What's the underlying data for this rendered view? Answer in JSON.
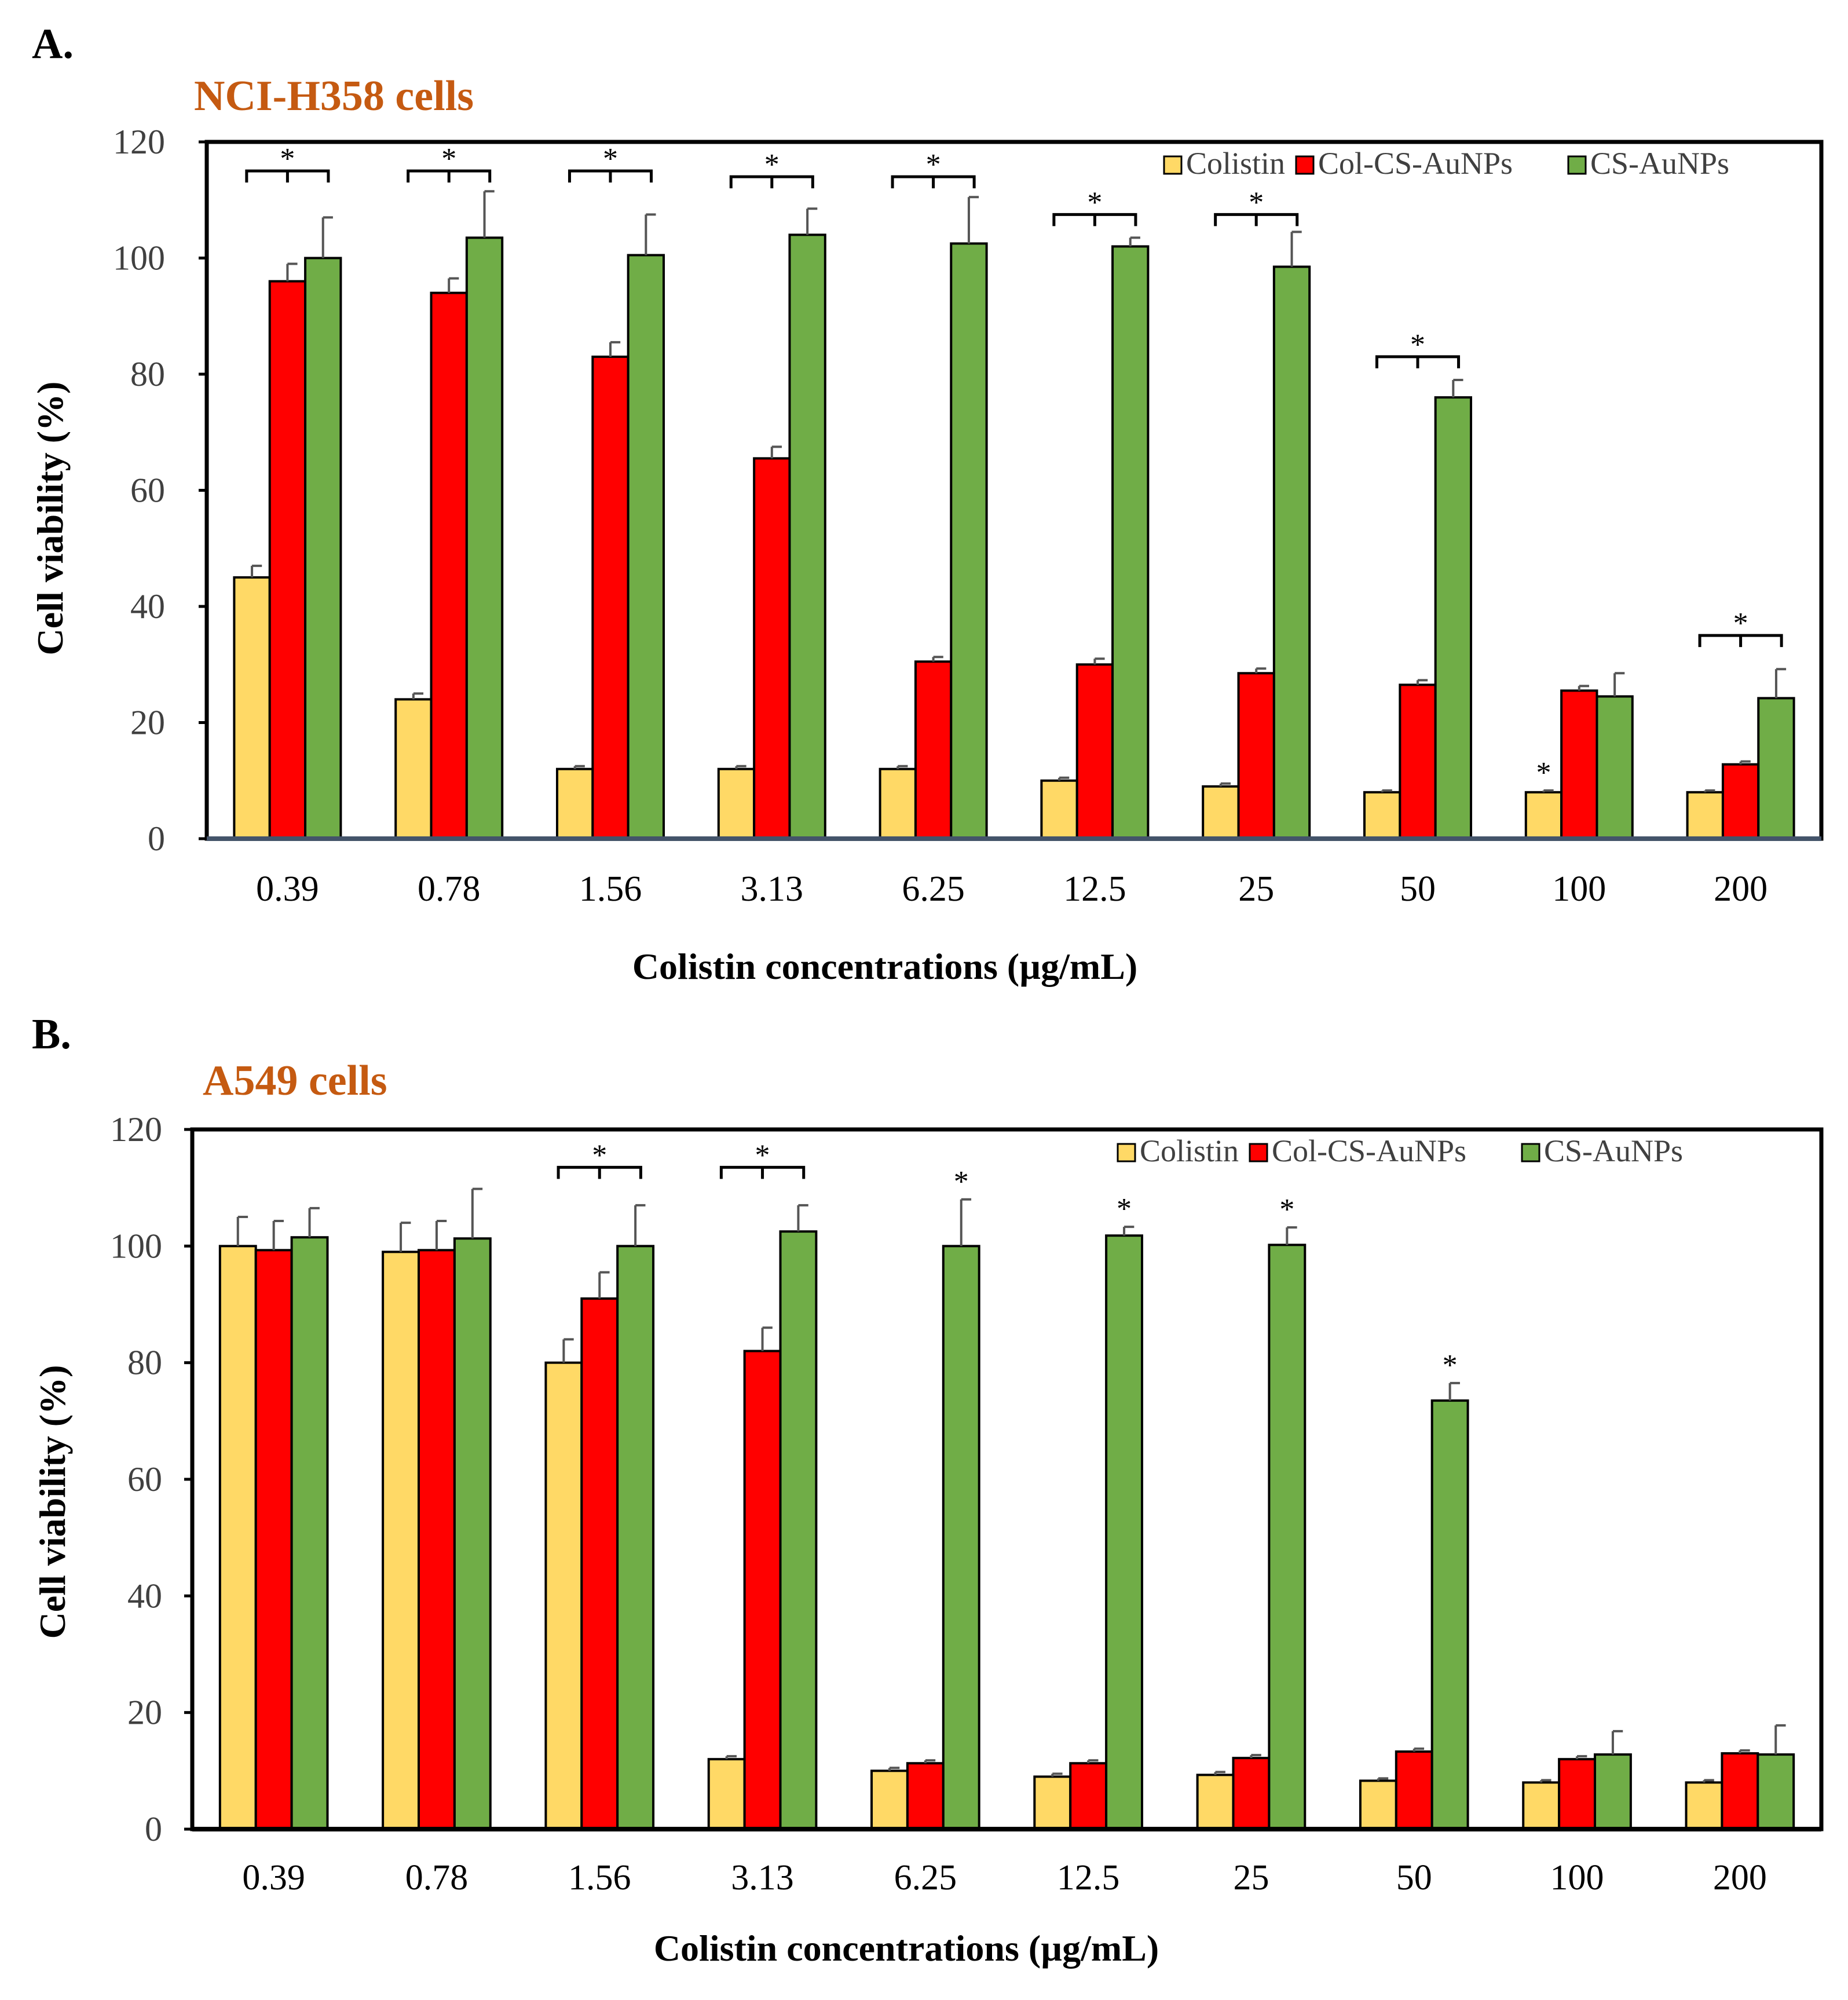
{
  "colors": {
    "Colistin": "#FFD966",
    "Col-CS-AuNPs": "#FF0000",
    "CS-AuNPs": "#70AD47",
    "title": "#C55A11",
    "barStroke": "#000000",
    "errorBar": "#555555"
  },
  "chart_data": [
    {
      "id": "A",
      "type": "bar",
      "panel_label": "A.",
      "title": "NCI-H358 cells",
      "xlabel": "Colistin concentrations (µg/mL)",
      "ylabel": "Cell viability (%)",
      "ylim": [
        0,
        120
      ],
      "yticks": [
        0,
        20,
        40,
        60,
        80,
        100,
        120
      ],
      "grid": false,
      "legend_position": "top-right",
      "categories": [
        "0.39",
        "0.78",
        "1.56",
        "3.13",
        "6.25",
        "12.5",
        "25",
        "50",
        "100",
        "200"
      ],
      "series": [
        {
          "name": "Colistin",
          "values": [
            45,
            24,
            12,
            12,
            12,
            10,
            9,
            8,
            8,
            8
          ],
          "errors": [
            2,
            1,
            0.5,
            0.5,
            0.5,
            0.5,
            0.5,
            0.3,
            0.3,
            0.3
          ]
        },
        {
          "name": "Col-CS-AuNPs",
          "values": [
            96,
            94,
            83,
            65.5,
            30.5,
            30,
            28.5,
            26.5,
            25.5,
            12.8
          ],
          "errors": [
            3,
            2.5,
            2.5,
            2,
            0.8,
            1,
            0.8,
            0.8,
            0.8,
            0.5
          ]
        },
        {
          "name": "CS-AuNPs",
          "values": [
            100,
            103.5,
            100.5,
            104,
            102.5,
            102,
            98.5,
            76,
            24.5,
            24.2
          ],
          "errors": [
            7,
            8,
            7,
            4.5,
            8,
            1.5,
            6,
            3,
            4,
            5
          ]
        }
      ],
      "brackets": [
        {
          "category": "0.39",
          "label": "*",
          "level": 115
        },
        {
          "category": "0.78",
          "label": "*",
          "level": 115
        },
        {
          "category": "1.56",
          "label": "*",
          "level": 115
        },
        {
          "category": "3.13",
          "label": "*",
          "level": 114
        },
        {
          "category": "6.25",
          "label": "*",
          "level": 114
        },
        {
          "category": "12.5",
          "label": "*",
          "level": 107.5
        },
        {
          "category": "25",
          "label": "*",
          "level": 107.5
        },
        {
          "category": "50",
          "label": "*",
          "level": 83
        },
        {
          "category": "200",
          "label": "*",
          "level": 35
        }
      ],
      "single_marks": [
        {
          "category": "100",
          "series": "Colistin",
          "label": "*"
        }
      ]
    },
    {
      "id": "B",
      "type": "bar",
      "panel_label": "B.",
      "title": "A549 cells",
      "xlabel": "Colistin concentrations (µg/mL)",
      "ylabel": "Cell viability (%)",
      "ylim": [
        0,
        120
      ],
      "yticks": [
        0,
        20,
        40,
        60,
        80,
        100,
        120
      ],
      "grid": false,
      "legend_position": "top-right",
      "categories": [
        "0.39",
        "0.78",
        "1.56",
        "3.13",
        "6.25",
        "12.5",
        "25",
        "50",
        "100",
        "200"
      ],
      "series": [
        {
          "name": "Colistin",
          "values": [
            100,
            99,
            80,
            12,
            10,
            9,
            9.3,
            8.3,
            8,
            8
          ],
          "errors": [
            5,
            5,
            4,
            0.5,
            0.5,
            0.5,
            0.5,
            0.4,
            0.4,
            0.4
          ]
        },
        {
          "name": "Col-CS-AuNPs",
          "values": [
            99.3,
            99.3,
            91,
            82,
            11.3,
            11.3,
            12.2,
            13.3,
            12,
            13
          ],
          "errors": [
            5,
            5,
            4.5,
            4,
            0.5,
            0.5,
            0.5,
            0.5,
            0.5,
            0.5
          ]
        },
        {
          "name": "CS-AuNPs",
          "values": [
            101.5,
            101.3,
            100,
            102.5,
            100,
            101.8,
            100.2,
            73.5,
            12.8,
            12.8
          ],
          "errors": [
            5,
            8.5,
            7,
            4.5,
            8,
            1.5,
            3,
            3,
            4,
            5
          ]
        }
      ],
      "brackets": [
        {
          "category": "1.56",
          "label": "*",
          "level": 113.5
        },
        {
          "category": "3.13",
          "label": "*",
          "level": 113.5
        }
      ],
      "single_marks": [
        {
          "category": "6.25",
          "series": "CS-AuNPs",
          "label": "*"
        },
        {
          "category": "12.5",
          "series": "CS-AuNPs",
          "label": "*"
        },
        {
          "category": "25",
          "series": "CS-AuNPs",
          "label": "*"
        },
        {
          "category": "50",
          "series": "CS-AuNPs",
          "label": "*"
        }
      ]
    }
  ]
}
